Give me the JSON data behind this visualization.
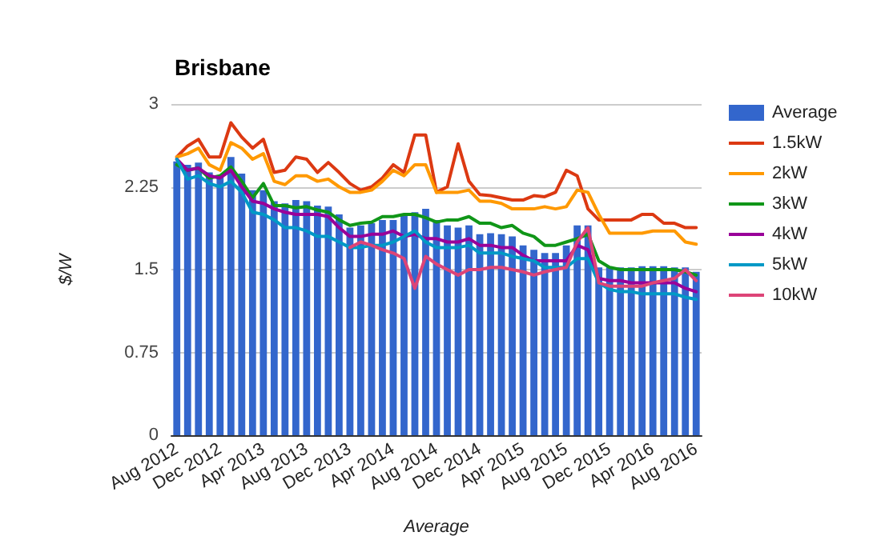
{
  "chart_data": {
    "type": "bar",
    "title": "Brisbane",
    "xlabel": "Average",
    "ylabel": "$/W",
    "categories": [
      "Aug 2012",
      null,
      null,
      null,
      "Dec 2012",
      null,
      null,
      null,
      "Apr 2013",
      null,
      null,
      null,
      "Aug 2013",
      null,
      null,
      null,
      "Dec 2013",
      null,
      null,
      null,
      "Apr 2014",
      null,
      null,
      null,
      "Aug 2014",
      null,
      null,
      null,
      "Dec 2014",
      null,
      null,
      null,
      "Apr 2015",
      null,
      null,
      null,
      "Aug 2015",
      null,
      null,
      null,
      "Dec 2015",
      null,
      null,
      null,
      "Apr 2016",
      null,
      null,
      null,
      "Aug 2016"
    ],
    "series": [
      {
        "name": "Average",
        "color": "#3366cc",
        "values": [
          2.48,
          2.45,
          2.47,
          2.38,
          2.35,
          2.52,
          2.37,
          2.22,
          2.22,
          2.12,
          2.1,
          2.13,
          2.12,
          2.08,
          2.07,
          2.0,
          1.88,
          1.9,
          1.92,
          1.95,
          1.95,
          2.0,
          2.02,
          2.05,
          1.95,
          1.9,
          1.88,
          1.9,
          1.82,
          1.83,
          1.82,
          1.8,
          1.72,
          1.68,
          1.65,
          1.65,
          1.72,
          1.9,
          1.9,
          1.52,
          1.52,
          1.52,
          1.52,
          1.53,
          1.53,
          1.53,
          1.52,
          1.52,
          1.48
        ]
      },
      {
        "name": "1.5kW",
        "type": "line",
        "color": "#dc3912",
        "values": [
          2.52,
          2.62,
          2.68,
          2.52,
          2.52,
          2.83,
          2.7,
          2.6,
          2.68,
          2.38,
          2.4,
          2.52,
          2.5,
          2.38,
          2.47,
          2.38,
          2.28,
          2.22,
          2.25,
          2.33,
          2.45,
          2.38,
          2.72,
          2.72,
          2.2,
          2.25,
          2.64,
          2.3,
          2.18,
          2.17,
          2.15,
          2.13,
          2.13,
          2.17,
          2.16,
          2.2,
          2.4,
          2.35,
          2.05,
          1.95,
          1.95,
          1.95,
          1.95,
          2.0,
          2.0,
          1.92,
          1.92,
          1.88,
          1.88
        ]
      },
      {
        "name": "2kW",
        "type": "line",
        "color": "#ff9900",
        "values": [
          2.52,
          2.55,
          2.6,
          2.45,
          2.4,
          2.65,
          2.6,
          2.5,
          2.55,
          2.3,
          2.27,
          2.35,
          2.35,
          2.3,
          2.32,
          2.25,
          2.2,
          2.2,
          2.22,
          2.3,
          2.4,
          2.35,
          2.45,
          2.45,
          2.2,
          2.2,
          2.2,
          2.22,
          2.12,
          2.12,
          2.1,
          2.05,
          2.05,
          2.05,
          2.07,
          2.05,
          2.07,
          2.22,
          2.2,
          2.0,
          1.83,
          1.83,
          1.83,
          1.83,
          1.85,
          1.85,
          1.85,
          1.75,
          1.73
        ]
      },
      {
        "name": "3kW",
        "type": "line",
        "color": "#109618",
        "values": [
          2.45,
          2.4,
          2.42,
          2.33,
          2.35,
          2.43,
          2.3,
          2.15,
          2.28,
          2.08,
          2.08,
          2.06,
          2.07,
          2.04,
          2.02,
          1.95,
          1.9,
          1.92,
          1.93,
          1.98,
          1.98,
          2.0,
          2.0,
          1.97,
          1.93,
          1.95,
          1.95,
          1.98,
          1.92,
          1.92,
          1.88,
          1.9,
          1.83,
          1.8,
          1.72,
          1.72,
          1.75,
          1.78,
          1.82,
          1.58,
          1.52,
          1.5,
          1.5,
          1.5,
          1.5,
          1.5,
          1.5,
          1.48,
          1.45
        ]
      },
      {
        "name": "4kW",
        "type": "line",
        "color": "#990099",
        "values": [
          2.5,
          2.4,
          2.42,
          2.35,
          2.33,
          2.4,
          2.25,
          2.12,
          2.1,
          2.05,
          2.02,
          2.0,
          2.0,
          2.0,
          1.98,
          1.88,
          1.8,
          1.8,
          1.82,
          1.82,
          1.85,
          1.8,
          1.82,
          1.78,
          1.78,
          1.75,
          1.75,
          1.78,
          1.72,
          1.72,
          1.7,
          1.7,
          1.63,
          1.58,
          1.58,
          1.58,
          1.58,
          1.72,
          1.68,
          1.42,
          1.4,
          1.4,
          1.38,
          1.38,
          1.38,
          1.38,
          1.38,
          1.33,
          1.3
        ]
      },
      {
        "name": "5kW",
        "type": "line",
        "color": "#0099c6",
        "values": [
          2.5,
          2.32,
          2.35,
          2.28,
          2.25,
          2.3,
          2.2,
          2.02,
          2.0,
          1.95,
          1.88,
          1.88,
          1.85,
          1.8,
          1.8,
          1.75,
          1.7,
          1.7,
          1.72,
          1.72,
          1.75,
          1.8,
          1.85,
          1.75,
          1.7,
          1.7,
          1.7,
          1.72,
          1.65,
          1.65,
          1.65,
          1.62,
          1.6,
          1.58,
          1.52,
          1.52,
          1.52,
          1.6,
          1.6,
          1.38,
          1.32,
          1.3,
          1.3,
          1.28,
          1.28,
          1.28,
          1.28,
          1.25,
          1.23
        ]
      },
      {
        "name": "10kW",
        "type": "line",
        "color": "#dd4477",
        "values": [
          null,
          null,
          null,
          null,
          null,
          null,
          null,
          null,
          null,
          null,
          null,
          null,
          null,
          null,
          null,
          null,
          1.7,
          1.75,
          1.72,
          1.68,
          1.65,
          1.6,
          1.33,
          1.62,
          1.55,
          1.5,
          1.45,
          1.5,
          1.5,
          1.52,
          1.52,
          1.5,
          1.48,
          1.45,
          1.48,
          1.5,
          1.52,
          1.75,
          1.88,
          1.38,
          1.35,
          1.35,
          1.35,
          1.35,
          1.38,
          1.4,
          1.42,
          1.5,
          1.4
        ]
      }
    ],
    "ylim": [
      0,
      3
    ],
    "yticks": [
      0,
      0.75,
      1.5,
      2.25,
      3
    ],
    "grid": "y",
    "legend": "right",
    "marker": "none",
    "line_style": "solid"
  }
}
